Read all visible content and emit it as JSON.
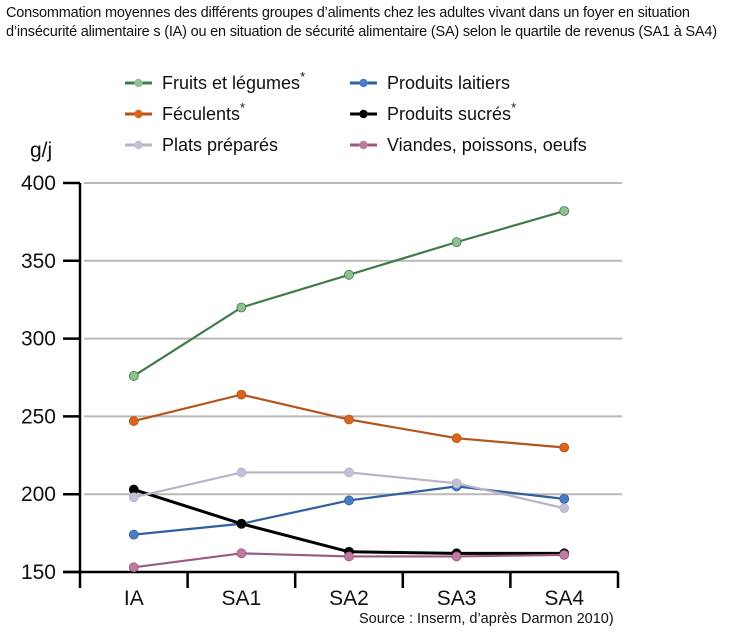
{
  "caption": "Consommation moyennes des différents groupes d’aliments chez les adultes vivant dans un foyer en situation d’insécurité alimentaire s (IA) ou en situation de sécurité alimentaire (SA) selon le quartile de revenus (SA1 à SA4)",
  "source": "Source : Inserm, d’après Darmon 2010)",
  "chart_data": {
    "type": "line",
    "title": "Consommation moyennes des différents groupes d’aliments chez les adultes vivant dans un foyer en situation d’insécurité alimentaire s (IA) ou en situation de sécurité alimentaire (SA) selon le quartile de revenus (SA1 à SA4)",
    "xlabel": "",
    "ylabel": "g/j",
    "categories": [
      "IA",
      "SA1",
      "SA2",
      "SA3",
      "SA4"
    ],
    "ylim": [
      150,
      400
    ],
    "yticks": [
      150,
      200,
      250,
      300,
      350,
      400
    ],
    "grid": true,
    "legend_position": "top",
    "series": [
      {
        "name": "Fruits et légumes",
        "starred": true,
        "color": "#3f7a4a",
        "marker_color": "#8fc08f",
        "values": [
          276,
          320,
          341,
          362,
          382
        ]
      },
      {
        "name": "Produits laitiers",
        "starred": false,
        "color": "#2f5f9e",
        "marker_color": "#4a7cc4",
        "values": [
          174,
          181,
          196,
          205,
          197
        ]
      },
      {
        "name": "Féculents",
        "starred": true,
        "color": "#b5541a",
        "marker_color": "#d9651f",
        "values": [
          247,
          264,
          248,
          236,
          230
        ]
      },
      {
        "name": "Produits sucrés",
        "starred": true,
        "color": "#000000",
        "marker_color": "#000000",
        "values": [
          203,
          181,
          163,
          162,
          162
        ]
      },
      {
        "name": "Plats préparés",
        "starred": false,
        "color": "#b8b4c8",
        "marker_color": "#c5c0d6",
        "values": [
          198,
          214,
          214,
          207,
          191
        ]
      },
      {
        "name": "Viandes, poissons, oeufs",
        "starred": false,
        "color": "#9a5a7e",
        "marker_color": "#c07aa0",
        "values": [
          153,
          162,
          160,
          160,
          161
        ]
      }
    ]
  }
}
